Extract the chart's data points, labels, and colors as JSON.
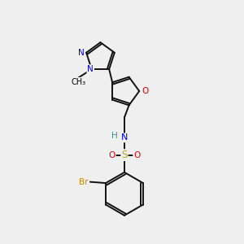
{
  "bg_color": "#efefef",
  "atom_colors": {
    "N": "#0000ee",
    "O": "#dd0000",
    "S": "#bbaa00",
    "Br": "#cc8800",
    "C": "#000000",
    "H": "#448888"
  },
  "bond_color": "#111111",
  "bond_width": 1.4,
  "figsize": [
    3.0,
    3.0
  ],
  "dpi": 100
}
